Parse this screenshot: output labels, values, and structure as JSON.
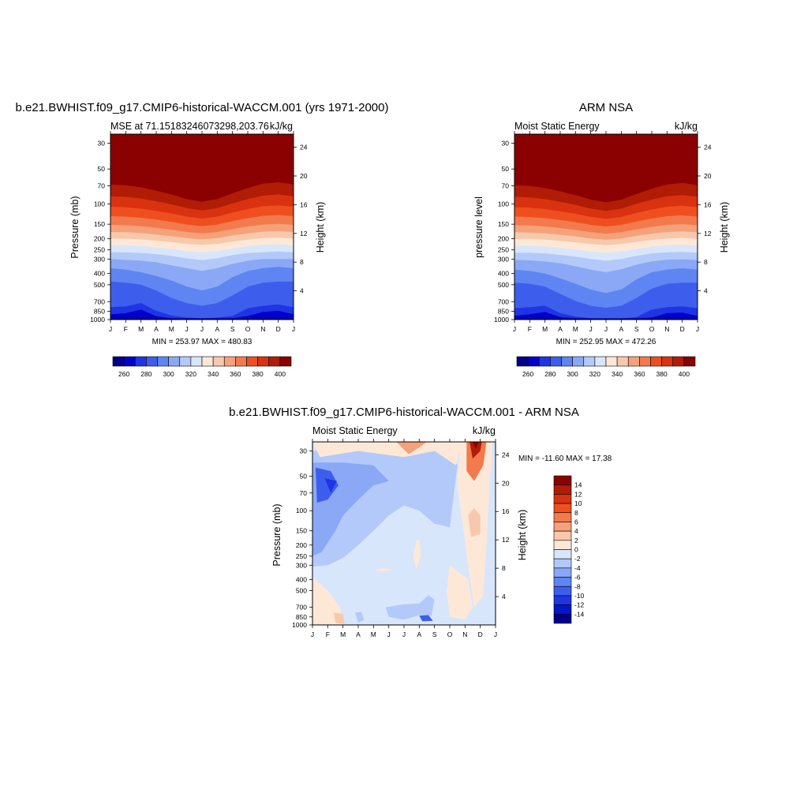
{
  "colors": {
    "mse_levels": [
      "#00008c",
      "#0000cd",
      "#1f35e5",
      "#3d5eed",
      "#5f85f2",
      "#8aa8f6",
      "#b3c9f9",
      "#d8e6fb",
      "#fde8d8",
      "#f8c8ac",
      "#f5a17a",
      "#f37a4d",
      "#ef4f1f",
      "#d93210",
      "#b01c05",
      "#8b0000"
    ],
    "diff_levels": [
      "#00008c",
      "#0018c8",
      "#1f35e5",
      "#3d5eed",
      "#5f85f2",
      "#8aa8f6",
      "#b3c9f9",
      "#d8e6fb",
      "#fde8d8",
      "#f8c8ac",
      "#f5a17a",
      "#f37a4d",
      "#ef4f1f",
      "#d93210",
      "#b01c05",
      "#8b0000"
    ]
  },
  "months": [
    "J",
    "F",
    "M",
    "A",
    "M",
    "J",
    "J",
    "A",
    "S",
    "O",
    "N",
    "D",
    "J"
  ],
  "pressure_ticks": [
    "30",
    "50",
    "70",
    "100",
    "150",
    "200",
    "250",
    "300",
    "400",
    "500",
    "700",
    "850",
    "1000"
  ],
  "height_ticks": [
    "24",
    "20",
    "16",
    "12",
    "8",
    "4"
  ],
  "chart_data": [
    {
      "type": "heatmap",
      "title": "b.e21.BWHIST.f09_g17.CMIP6-historical-WACCM.001 (yrs 1971-2000)",
      "subtitle_left": "MSE at 71.15183246073298,203.76",
      "subtitle_right": "kJ/kg",
      "ylabel": "Pressure (mb)",
      "ylabel_right": "Height (km)",
      "stats": "MIN = 253.97 MAX = 480.83",
      "x_range": [
        "J",
        "J"
      ],
      "ylim": [
        1000,
        25
      ],
      "colorbar_labels": [
        "260",
        "280",
        "300",
        "320",
        "340",
        "360",
        "380",
        "400"
      ],
      "colorbar_levels": [
        255,
        260,
        265,
        270,
        275,
        280,
        285,
        290,
        295,
        300,
        305,
        310,
        315,
        320,
        325,
        330,
        335,
        340,
        345,
        350,
        355,
        360,
        365,
        370,
        375,
        380,
        385,
        390,
        395,
        400
      ],
      "contour_levels": [
        260,
        270,
        280,
        290,
        300,
        310,
        320,
        330,
        340,
        350,
        360,
        370,
        380,
        390,
        400
      ],
      "boundary_pressures": [
        [
          975,
          975,
          975,
          975,
          975,
          975,
          975,
          975,
          975,
          975,
          975,
          975,
          975
        ],
        [
          900,
          880,
          820,
          935,
          975,
          975,
          975,
          975,
          975,
          930,
          860,
          840,
          900
        ],
        [
          780,
          770,
          720,
          840,
          920,
          960,
          975,
          960,
          930,
          800,
          760,
          740,
          780
        ],
        [
          470,
          480,
          500,
          560,
          650,
          720,
          760,
          720,
          620,
          520,
          480,
          470,
          470
        ],
        [
          360,
          370,
          390,
          420,
          460,
          520,
          560,
          520,
          430,
          380,
          360,
          350,
          360
        ],
        [
          300,
          305,
          310,
          320,
          340,
          360,
          380,
          360,
          330,
          310,
          300,
          300,
          300
        ],
        [
          262,
          262,
          266,
          272,
          282,
          296,
          306,
          296,
          278,
          266,
          262,
          258,
          262
        ],
        [
          228,
          228,
          232,
          238,
          246,
          256,
          262,
          256,
          244,
          232,
          226,
          224,
          228
        ],
        [
          200,
          200,
          203,
          208,
          214,
          222,
          226,
          222,
          212,
          204,
          198,
          196,
          200
        ],
        [
          175,
          176,
          179,
          184,
          190,
          198,
          203,
          198,
          188,
          180,
          174,
          172,
          175
        ],
        [
          152,
          153,
          156,
          161,
          167,
          175,
          180,
          175,
          165,
          157,
          151,
          149,
          152
        ],
        [
          128,
          129,
          132,
          137,
          143,
          151,
          156,
          151,
          141,
          133,
          127,
          125,
          128
        ],
        [
          106,
          107,
          110,
          115,
          121,
          129,
          134,
          129,
          119,
          111,
          105,
          103,
          106
        ],
        [
          86,
          87,
          90,
          95,
          101,
          109,
          114,
          109,
          99,
          91,
          85,
          83,
          86
        ],
        [
          68,
          69,
          72,
          77,
          83,
          91,
          96,
          91,
          81,
          73,
          67,
          65,
          68
        ]
      ]
    },
    {
      "type": "heatmap",
      "title": "ARM NSA",
      "subtitle_left": "Moist Static Energy",
      "subtitle_right": "kJ/kg",
      "ylabel": "pressure level",
      "ylabel_right": "Height (km)",
      "stats": "MIN = 252.95 MAX = 472.26",
      "x_range": [
        "J",
        "J"
      ],
      "ylim": [
        1000,
        25
      ],
      "colorbar_labels": [
        "260",
        "280",
        "300",
        "320",
        "340",
        "360",
        "380",
        "400"
      ],
      "colorbar_levels": [
        255,
        260,
        265,
        270,
        275,
        280,
        285,
        290,
        295,
        300,
        305,
        310,
        315,
        320,
        325,
        330,
        335,
        340,
        345,
        350,
        355,
        360,
        365,
        370,
        375,
        380,
        385,
        390,
        395,
        400
      ],
      "contour_levels": [
        260,
        270,
        280,
        290,
        300,
        310,
        320,
        330,
        340,
        350,
        360,
        370,
        380,
        390,
        400
      ],
      "boundary_pressures": [
        [
          975,
          975,
          975,
          975,
          975,
          975,
          975,
          975,
          975,
          975,
          975,
          975,
          975
        ],
        [
          930,
          900,
          860,
          950,
          975,
          975,
          975,
          975,
          975,
          960,
          880,
          870,
          930
        ],
        [
          800,
          780,
          760,
          880,
          940,
          975,
          975,
          975,
          950,
          820,
          780,
          770,
          800
        ],
        [
          480,
          490,
          520,
          600,
          690,
          760,
          790,
          760,
          650,
          540,
          490,
          480,
          480
        ],
        [
          370,
          380,
          400,
          440,
          490,
          550,
          590,
          550,
          450,
          390,
          370,
          360,
          370
        ],
        [
          305,
          308,
          314,
          326,
          346,
          370,
          390,
          368,
          336,
          314,
          304,
          302,
          305
        ],
        [
          264,
          264,
          268,
          276,
          286,
          300,
          310,
          300,
          282,
          268,
          262,
          260,
          264
        ],
        [
          230,
          230,
          234,
          240,
          248,
          258,
          264,
          258,
          246,
          234,
          228,
          226,
          230
        ],
        [
          201,
          201,
          204,
          209,
          215,
          223,
          228,
          223,
          213,
          205,
          199,
          197,
          201
        ],
        [
          176,
          177,
          180,
          185,
          191,
          199,
          204,
          199,
          189,
          181,
          175,
          173,
          176
        ],
        [
          153,
          154,
          157,
          162,
          168,
          176,
          181,
          176,
          166,
          158,
          152,
          150,
          153
        ],
        [
          129,
          130,
          133,
          138,
          144,
          152,
          157,
          152,
          142,
          134,
          128,
          126,
          129
        ],
        [
          107,
          108,
          111,
          116,
          122,
          130,
          135,
          130,
          120,
          112,
          106,
          104,
          107
        ],
        [
          87,
          88,
          91,
          96,
          102,
          110,
          115,
          110,
          100,
          92,
          86,
          84,
          87
        ],
        [
          69,
          70,
          73,
          78,
          84,
          92,
          97,
          92,
          82,
          74,
          68,
          66,
          69
        ]
      ]
    },
    {
      "type": "heatmap",
      "title": "b.e21.BWHIST.f09_g17.CMIP6-historical-WACCM.001 - ARM NSA",
      "subtitle_left": "Moist Static Energy",
      "subtitle_right": "kJ/kg",
      "ylabel": "Pressure (mb)",
      "ylabel_right": "Height (km)",
      "stats": "MIN = -11.60 MAX =  17.38",
      "x_range": [
        "J",
        "J"
      ],
      "ylim": [
        1000,
        25
      ],
      "colorbar_labels": [
        "14",
        "12",
        "10",
        "8",
        "6",
        "4",
        "2",
        "0",
        "-2",
        "-4",
        "-6",
        "-8",
        "-10",
        "-12",
        "-14"
      ],
      "colorbar_levels": [
        -14,
        -12,
        -10,
        -8,
        -6,
        -4,
        -2,
        0,
        2,
        4,
        6,
        8,
        10,
        12,
        14
      ],
      "regions": [
        {
          "level": -2,
          "pressure": [
            [
              300,
              30
            ],
            [
              300,
              40
            ],
            [
              280,
              60
            ],
            [
              280,
              60
            ],
            [
              290,
              90
            ],
            [
              300,
              120
            ],
            [
              300,
              120
            ],
            [
              300,
              120
            ],
            [
              300,
              120
            ],
            [
              300,
              120
            ],
            [
              120,
              35
            ],
            [
              300,
              40
            ],
            [
              300,
              30
            ]
          ]
        },
        {
          "level": -4,
          "pressure": [
            [
              250,
              35
            ],
            [
              220,
              40
            ],
            [
              160,
              60
            ],
            [
              170,
              70
            ],
            [
              280,
              100
            ],
            [
              0,
              0
            ],
            [
              0,
              0
            ],
            [
              0,
              0
            ],
            [
              0,
              0
            ],
            [
              0,
              0
            ],
            [
              0,
              0
            ],
            [
              0,
              0
            ],
            [
              0,
              0
            ]
          ]
        },
        {
          "level": -8,
          "pressure": [
            [
              0,
              0
            ],
            [
              80,
              45
            ],
            [
              60,
              50
            ],
            [
              0,
              0
            ],
            [
              0,
              0
            ],
            [
              0,
              0
            ],
            [
              0,
              0
            ],
            [
              0,
              0
            ],
            [
              0,
              0
            ],
            [
              0,
              0
            ],
            [
              0,
              0
            ],
            [
              0,
              0
            ],
            [
              0,
              0
            ]
          ]
        },
        {
          "level": 2,
          "pressure": [
            [
              0,
              0
            ],
            [
              0,
              0
            ],
            [
              0,
              0
            ],
            [
              0,
              0
            ],
            [
              0,
              0
            ],
            [
              0,
              0
            ],
            [
              0,
              0
            ],
            [
              0,
              0
            ],
            [
              0,
              0
            ],
            [
              0,
              0
            ],
            [
              800,
              40
            ],
            [
              800,
              90
            ],
            [
              0,
              0
            ]
          ]
        },
        {
          "level": 4,
          "pressure": [
            [
              0,
              0
            ],
            [
              0,
              0
            ],
            [
              0,
              0
            ],
            [
              0,
              0
            ],
            [
              0,
              0
            ],
            [
              0,
              0
            ],
            [
              0,
              0
            ],
            [
              0,
              0
            ],
            [
              0,
              0
            ],
            [
              0,
              0
            ],
            [
              60,
              26
            ],
            [
              40,
              26
            ],
            [
              0,
              0
            ]
          ]
        },
        {
          "level": 10,
          "pressure": [
            [
              0,
              0
            ],
            [
              0,
              0
            ],
            [
              0,
              0
            ],
            [
              0,
              0
            ],
            [
              0,
              0
            ],
            [
              0,
              0
            ],
            [
              0,
              0
            ],
            [
              0,
              0
            ],
            [
              0,
              0
            ],
            [
              0,
              0
            ],
            [
              38,
              25
            ],
            [
              30,
              25
            ],
            [
              0,
              0
            ]
          ]
        }
      ]
    }
  ]
}
